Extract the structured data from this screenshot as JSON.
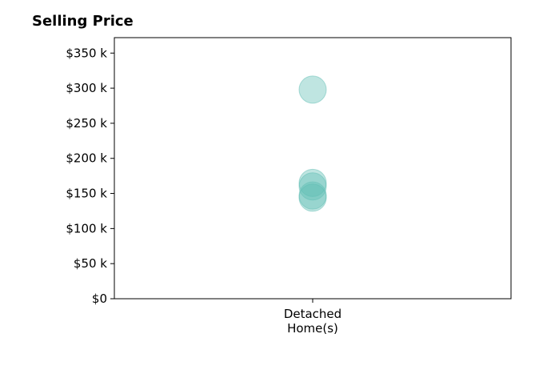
{
  "chart_data": {
    "type": "scatter",
    "title": "Selling Price",
    "xlabel": "",
    "ylabel": "",
    "categories": [
      [
        "Detached",
        "Home(s)"
      ]
    ],
    "points": [
      {
        "category": 0,
        "value": 298000
      },
      {
        "category": 0,
        "value": 165000
      },
      {
        "category": 0,
        "value": 160000
      },
      {
        "category": 0,
        "value": 147000
      },
      {
        "category": 0,
        "value": 144000
      }
    ],
    "ylim": [
      0,
      372000
    ],
    "yticks": [
      0,
      50000,
      100000,
      150000,
      200000,
      250000,
      300000,
      350000
    ],
    "ytick_labels": [
      "$0",
      "$50 k",
      "$100 k",
      "$150 k",
      "$200 k",
      "$250 k",
      "$300 k",
      "$350 k"
    ],
    "grid": false,
    "legend": "none",
    "marker_color": "#5fbdb3"
  }
}
